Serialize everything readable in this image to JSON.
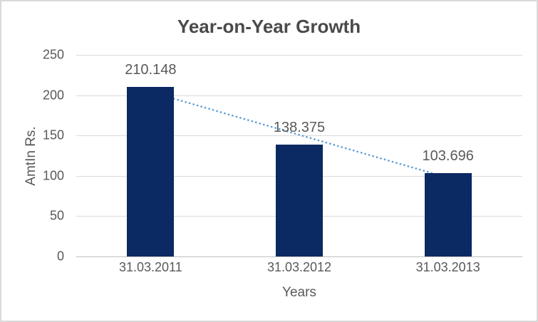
{
  "chart_data": {
    "type": "bar",
    "title": "Year-on-Year Growth",
    "categories": [
      "31.03.2011",
      "31.03.2012",
      "31.03.2013"
    ],
    "values": [
      210.148,
      138.375,
      103.696
    ],
    "data_labels": [
      "210.148",
      "138.375",
      "103.696"
    ],
    "xlabel": "Years",
    "ylabel": "AmtIn Rs.",
    "ylim": [
      0,
      250
    ],
    "yticks": [
      250,
      200,
      150,
      100,
      50,
      0
    ],
    "ytick_labels": [
      "250",
      "200",
      "150",
      "100",
      "50",
      "0"
    ],
    "grid": true,
    "legend": false,
    "bar_color": "#0b2963",
    "gridline_color": "#d9d9d9",
    "axis_line_color": "#bfbfbf",
    "text_color": "#595959",
    "title_color": "#4a4a4a",
    "border_color": "#d9d9d9",
    "trendline": {
      "type": "linear",
      "style": "dotted",
      "color": "#5b9bd5",
      "start_value": 204,
      "end_value": 93
    }
  }
}
